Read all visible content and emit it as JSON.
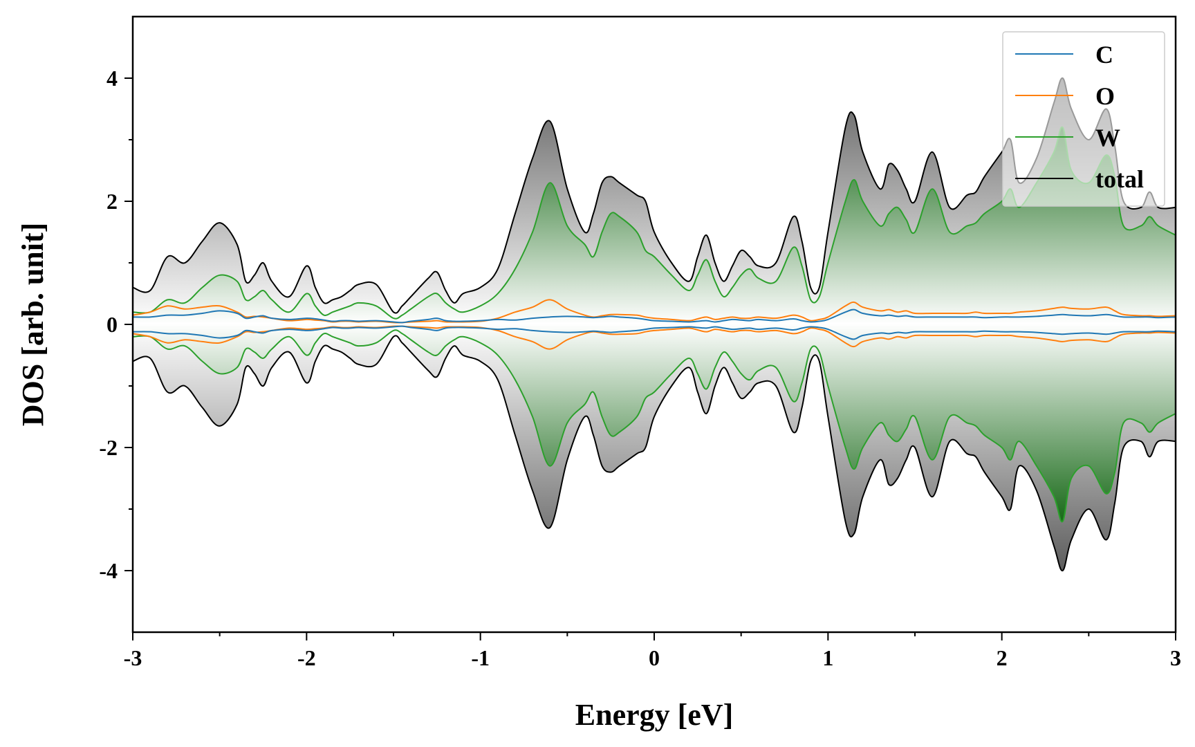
{
  "chart_data": {
    "type": "area",
    "title": "",
    "xlabel": "Energy [eV]",
    "ylabel": "DOS [arb. unit]",
    "xlim": [
      -3,
      3
    ],
    "ylim": [
      -5,
      5
    ],
    "xticks": [
      -3,
      -2,
      -1,
      0,
      1,
      2,
      3
    ],
    "xtick_labels": [
      "-3",
      "-2",
      "-1",
      "0",
      "1",
      "2",
      "3"
    ],
    "yticks": [
      -4,
      -2,
      0,
      2,
      4
    ],
    "ytick_labels": [
      "-4",
      "-2",
      "0",
      "2",
      "4"
    ],
    "grid": false,
    "legend_position": "top-right",
    "mirrored_spin_down": true,
    "x": [
      -3.0,
      -2.9,
      -2.8,
      -2.7,
      -2.6,
      -2.5,
      -2.4,
      -2.35,
      -2.3,
      -2.25,
      -2.2,
      -2.1,
      -2.0,
      -1.95,
      -1.9,
      -1.85,
      -1.8,
      -1.75,
      -1.7,
      -1.6,
      -1.5,
      -1.45,
      -1.4,
      -1.3,
      -1.25,
      -1.2,
      -1.15,
      -1.1,
      -1.0,
      -0.9,
      -0.8,
      -0.7,
      -0.6,
      -0.5,
      -0.4,
      -0.35,
      -0.3,
      -0.25,
      -0.2,
      -0.1,
      -0.05,
      0.0,
      0.1,
      0.2,
      0.25,
      0.3,
      0.35,
      0.4,
      0.45,
      0.5,
      0.55,
      0.6,
      0.7,
      0.8,
      0.85,
      0.9,
      0.95,
      1.0,
      1.1,
      1.15,
      1.2,
      1.3,
      1.35,
      1.4,
      1.45,
      1.5,
      1.6,
      1.7,
      1.8,
      1.85,
      1.9,
      2.0,
      2.05,
      2.1,
      2.2,
      2.3,
      2.35,
      2.4,
      2.5,
      2.6,
      2.65,
      2.7,
      2.8,
      2.85,
      2.9,
      3.0
    ],
    "series": [
      {
        "name": "C",
        "color": "#1f77b4",
        "values": [
          0.12,
          0.12,
          0.15,
          0.15,
          0.18,
          0.22,
          0.18,
          0.1,
          0.12,
          0.14,
          0.1,
          0.08,
          0.1,
          0.09,
          0.07,
          0.05,
          0.06,
          0.06,
          0.05,
          0.06,
          0.04,
          0.03,
          0.05,
          0.08,
          0.1,
          0.06,
          0.05,
          0.05,
          0.06,
          0.08,
          0.07,
          0.1,
          0.12,
          0.13,
          0.12,
          0.11,
          0.12,
          0.13,
          0.12,
          0.1,
          0.08,
          0.06,
          0.05,
          0.04,
          0.05,
          0.06,
          0.04,
          0.06,
          0.08,
          0.07,
          0.06,
          0.08,
          0.06,
          0.09,
          0.06,
          0.04,
          0.05,
          0.08,
          0.2,
          0.24,
          0.18,
          0.14,
          0.15,
          0.13,
          0.14,
          0.12,
          0.12,
          0.12,
          0.12,
          0.12,
          0.11,
          0.12,
          0.12,
          0.12,
          0.13,
          0.15,
          0.16,
          0.15,
          0.14,
          0.16,
          0.14,
          0.12,
          0.12,
          0.12,
          0.11,
          0.12
        ]
      },
      {
        "name": "O",
        "color": "#ff7f0e",
        "values": [
          0.15,
          0.2,
          0.3,
          0.25,
          0.28,
          0.3,
          0.2,
          0.12,
          0.13,
          0.12,
          0.1,
          0.06,
          0.08,
          0.07,
          0.06,
          0.04,
          0.05,
          0.05,
          0.04,
          0.05,
          0.03,
          0.03,
          0.04,
          0.05,
          0.06,
          0.04,
          0.04,
          0.04,
          0.05,
          0.1,
          0.2,
          0.28,
          0.4,
          0.25,
          0.15,
          0.12,
          0.14,
          0.16,
          0.16,
          0.15,
          0.12,
          0.1,
          0.08,
          0.06,
          0.09,
          0.12,
          0.08,
          0.1,
          0.12,
          0.1,
          0.1,
          0.12,
          0.1,
          0.15,
          0.12,
          0.06,
          0.08,
          0.12,
          0.3,
          0.36,
          0.28,
          0.22,
          0.24,
          0.2,
          0.22,
          0.18,
          0.18,
          0.18,
          0.18,
          0.2,
          0.18,
          0.18,
          0.18,
          0.2,
          0.22,
          0.26,
          0.28,
          0.26,
          0.25,
          0.28,
          0.22,
          0.16,
          0.14,
          0.14,
          0.13,
          0.14
        ]
      },
      {
        "name": "W",
        "color": "#2ca02c",
        "values": [
          0.2,
          0.2,
          0.4,
          0.35,
          0.6,
          0.8,
          0.7,
          0.4,
          0.45,
          0.55,
          0.4,
          0.2,
          0.5,
          0.3,
          0.15,
          0.2,
          0.25,
          0.3,
          0.35,
          0.3,
          0.1,
          0.15,
          0.25,
          0.45,
          0.5,
          0.35,
          0.25,
          0.2,
          0.3,
          0.5,
          0.9,
          1.5,
          2.3,
          1.6,
          1.3,
          1.1,
          1.5,
          1.8,
          1.75,
          1.5,
          1.2,
          1.1,
          0.8,
          0.55,
          0.8,
          1.05,
          0.7,
          0.45,
          0.6,
          0.8,
          0.9,
          0.75,
          0.7,
          1.25,
          0.95,
          0.4,
          0.45,
          1.0,
          2.0,
          2.35,
          2.0,
          1.6,
          1.8,
          1.9,
          1.7,
          1.5,
          2.2,
          1.5,
          1.6,
          1.65,
          1.8,
          2.0,
          2.2,
          1.9,
          2.3,
          2.8,
          3.2,
          2.5,
          2.3,
          2.75,
          2.4,
          1.6,
          1.6,
          1.75,
          1.6,
          1.45
        ]
      },
      {
        "name": "total",
        "color": "#000000",
        "values": [
          0.6,
          0.55,
          1.1,
          1.0,
          1.35,
          1.65,
          1.3,
          0.7,
          0.8,
          1.0,
          0.7,
          0.45,
          0.95,
          0.6,
          0.35,
          0.4,
          0.45,
          0.55,
          0.65,
          0.65,
          0.2,
          0.3,
          0.45,
          0.75,
          0.85,
          0.55,
          0.35,
          0.5,
          0.6,
          0.9,
          1.8,
          2.7,
          3.3,
          2.2,
          1.5,
          1.8,
          2.3,
          2.4,
          2.3,
          2.1,
          2.0,
          1.5,
          1.0,
          0.7,
          1.1,
          1.45,
          1.0,
          0.7,
          0.95,
          1.2,
          1.1,
          0.95,
          1.0,
          1.75,
          1.35,
          0.6,
          0.6,
          1.5,
          3.2,
          3.4,
          2.8,
          2.2,
          2.6,
          2.5,
          2.2,
          2.0,
          2.8,
          1.9,
          2.1,
          2.15,
          2.4,
          2.8,
          3.0,
          2.3,
          2.7,
          3.6,
          4.0,
          3.5,
          3.0,
          3.5,
          2.9,
          2.0,
          1.9,
          2.15,
          1.9,
          1.9
        ]
      }
    ]
  }
}
